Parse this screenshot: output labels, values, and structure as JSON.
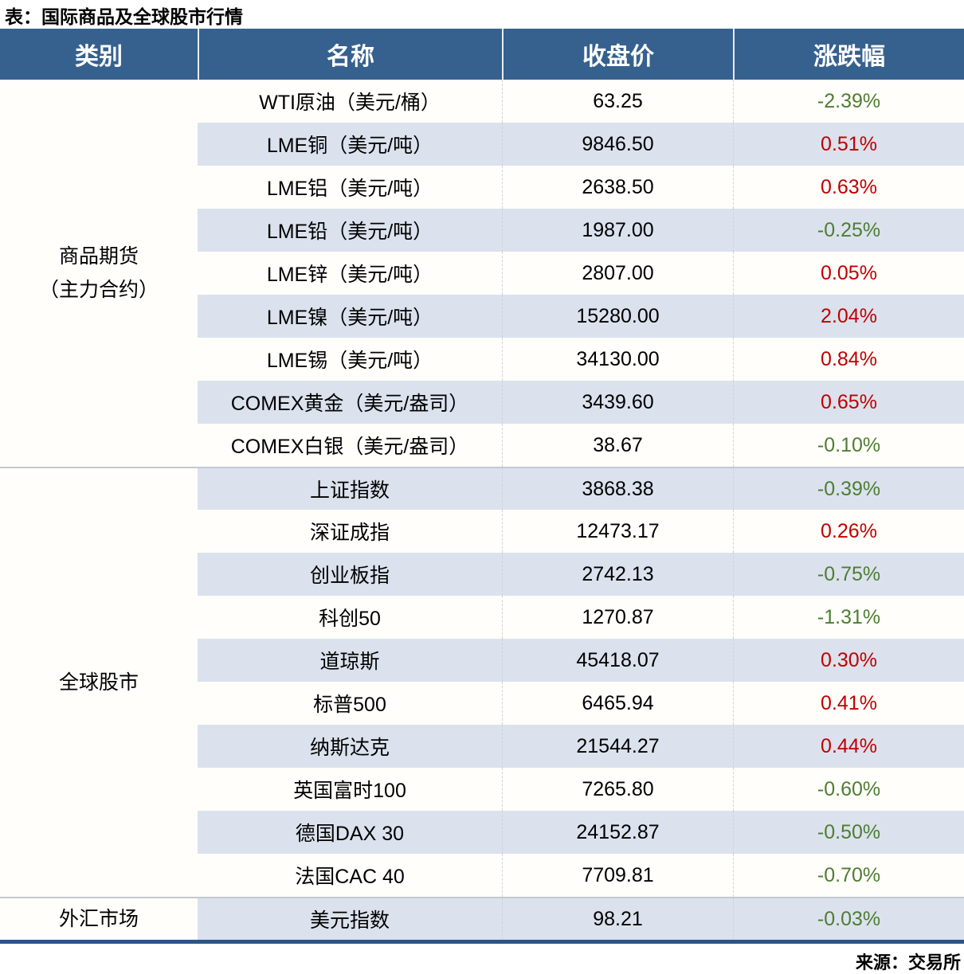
{
  "title": "表：国际商品及全球股市行情",
  "source": "来源：交易所",
  "colors": {
    "header_bg": "#36618e",
    "header_text": "#ffffff",
    "row_bg": "#fffefa",
    "row_alt_bg": "#dbe2ed",
    "up_red": "#c00000",
    "down_green": "#4e7d32",
    "bottom_border": "#2a5586",
    "divider": "#c4c9d1"
  },
  "table": {
    "headers": [
      "类别",
      "名称",
      "收盘价",
      "涨跌幅"
    ],
    "sections": [
      {
        "label_lines": [
          "商品期货",
          "（主力合约）"
        ],
        "row_span": 9
      },
      {
        "label_lines": [
          "全球股市"
        ],
        "row_span": 10
      },
      {
        "label_lines": [
          "外汇市场"
        ],
        "row_span": 1
      }
    ],
    "rows": [
      {
        "name": "WTI原油（美元/桶）",
        "close": "63.25",
        "change": "-2.39%",
        "dir": "down"
      },
      {
        "name": "LME铜（美元/吨）",
        "close": "9846.50",
        "change": "0.51%",
        "dir": "up"
      },
      {
        "name": "LME铝（美元/吨）",
        "close": "2638.50",
        "change": "0.63%",
        "dir": "up"
      },
      {
        "name": "LME铅（美元/吨）",
        "close": "1987.00",
        "change": "-0.25%",
        "dir": "down"
      },
      {
        "name": "LME锌（美元/吨）",
        "close": "2807.00",
        "change": "0.05%",
        "dir": "up"
      },
      {
        "name": "LME镍（美元/吨）",
        "close": "15280.00",
        "change": "2.04%",
        "dir": "up"
      },
      {
        "name": "LME锡（美元/吨）",
        "close": "34130.00",
        "change": "0.84%",
        "dir": "up"
      },
      {
        "name": "COMEX黄金（美元/盎司）",
        "close": "3439.60",
        "change": "0.65%",
        "dir": "up"
      },
      {
        "name": "COMEX白银（美元/盎司）",
        "close": "38.67",
        "change": "-0.10%",
        "dir": "down"
      },
      {
        "name": "上证指数",
        "close": "3868.38",
        "change": "-0.39%",
        "dir": "down"
      },
      {
        "name": "深证成指",
        "close": "12473.17",
        "change": "0.26%",
        "dir": "up"
      },
      {
        "name": "创业板指",
        "close": "2742.13",
        "change": "-0.75%",
        "dir": "down"
      },
      {
        "name": "科创50",
        "close": "1270.87",
        "change": "-1.31%",
        "dir": "down"
      },
      {
        "name": "道琼斯",
        "close": "45418.07",
        "change": "0.30%",
        "dir": "up"
      },
      {
        "name": "标普500",
        "close": "6465.94",
        "change": "0.41%",
        "dir": "up"
      },
      {
        "name": "纳斯达克",
        "close": "21544.27",
        "change": "0.44%",
        "dir": "up"
      },
      {
        "name": "英国富时100",
        "close": "7265.80",
        "change": "-0.60%",
        "dir": "down"
      },
      {
        "name": "德国DAX 30",
        "close": "24152.87",
        "change": "-0.50%",
        "dir": "down"
      },
      {
        "name": "法国CAC 40",
        "close": "7709.81",
        "change": "-0.70%",
        "dir": "down"
      },
      {
        "name": "美元指数",
        "close": "98.21",
        "change": "-0.03%",
        "dir": "down"
      }
    ]
  }
}
